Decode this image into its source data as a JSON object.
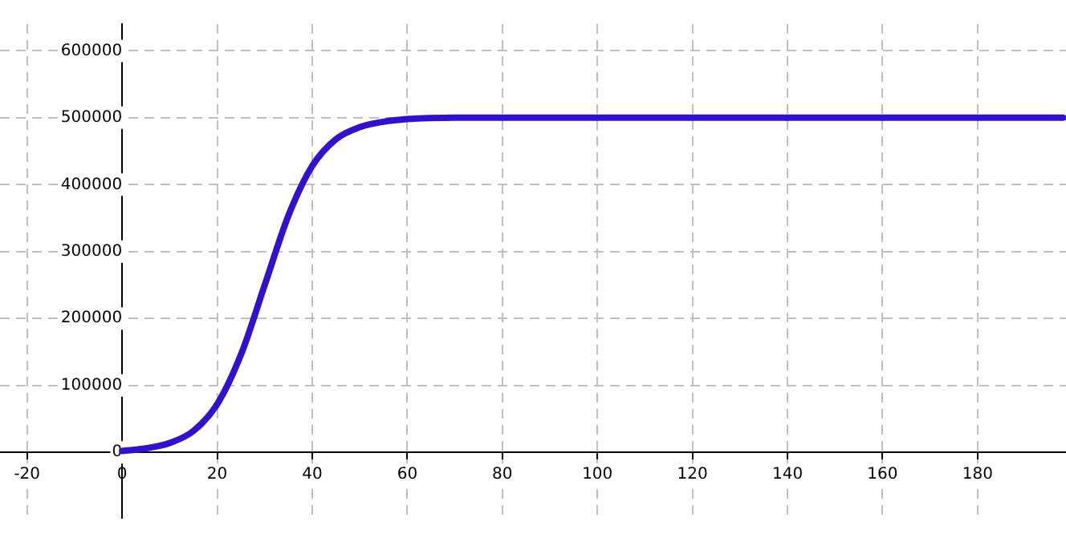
{
  "chart_data": {
    "type": "line",
    "x": [
      0,
      5,
      10,
      15,
      20,
      25,
      30,
      35,
      40,
      45,
      50,
      55,
      60,
      70,
      80,
      100,
      120,
      140,
      160,
      180,
      198
    ],
    "series": [
      {
        "color": "#3311cc",
        "values": [
          2000,
          6000,
          14000,
          32000,
          72000,
          146000,
          250000,
          354000,
          428000,
          468000,
          486000,
          494000,
          498000,
          500000,
          500000,
          500000,
          500000,
          500000,
          500000,
          500000,
          500000
        ]
      }
    ],
    "xlim": [
      -25.7,
      198.6
    ],
    "ylim": [
      -98000,
      640000
    ],
    "xticks": [
      -20,
      0,
      20,
      40,
      60,
      80,
      100,
      120,
      140,
      160,
      180
    ],
    "yticks": [
      0,
      100000,
      200000,
      300000,
      400000,
      500000,
      600000
    ],
    "grid": true,
    "legend": false,
    "marker": "none",
    "line_style": "solid"
  }
}
